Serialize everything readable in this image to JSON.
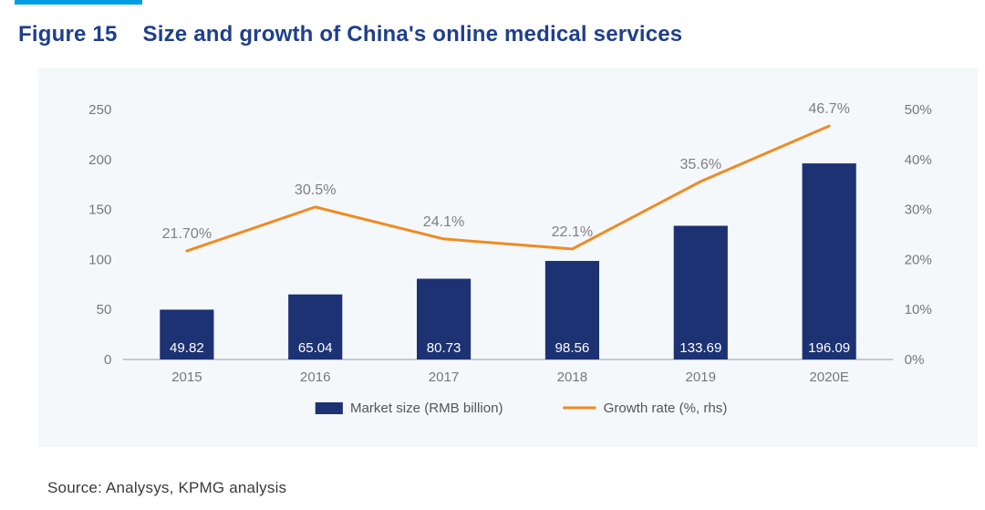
{
  "figure": {
    "number_label": "Figure 15",
    "title": "Size and growth of China's online medical services",
    "source_text": "Source: Analysys, KPMG analysis",
    "title_color": "#1f3f8a",
    "title_fontsize": 24,
    "accent_bar_color": "#009de0"
  },
  "chart": {
    "type": "bar+line",
    "panel_bg": "#f4f8fb",
    "categories": [
      "2015",
      "2016",
      "2017",
      "2018",
      "2019",
      "2020E"
    ],
    "bars": {
      "label": "Market size (RMB billion)",
      "values": [
        49.82,
        65.04,
        80.73,
        98.56,
        133.69,
        196.09
      ],
      "value_labels": [
        "49.82",
        "65.04",
        "80.73",
        "98.56",
        "133.69",
        "196.09"
      ],
      "color": "#1c3272",
      "bar_width_ratio": 0.42,
      "value_label_color": "#ffffff",
      "value_label_fontsize": 15
    },
    "line": {
      "label": "Growth rate (%, rhs)",
      "values_pct": [
        21.7,
        30.5,
        24.1,
        22.1,
        35.6,
        46.7
      ],
      "value_labels": [
        "21.70%",
        "30.5%",
        "24.1%",
        "22.1%",
        "35.6%",
        "46.7%"
      ],
      "color": "#ef8b22",
      "width": 3
    },
    "y_left": {
      "min": 0,
      "max": 250,
      "tick_step": 50,
      "ticks": [
        0,
        50,
        100,
        150,
        200,
        250
      ]
    },
    "y_right": {
      "min": 0,
      "max": 50,
      "tick_step": 10,
      "ticks": [
        "0%",
        "10%",
        "20%",
        "30%",
        "40%",
        "50%"
      ]
    },
    "axis_color": "#b7bbbe",
    "tick_label_color": "#777777",
    "tick_label_fontsize": 15,
    "category_fontsize": 15,
    "legend": {
      "bar_swatch_color": "#1c3272",
      "line_swatch_color": "#ef8b22",
      "fontsize": 15,
      "text_color": "#555555"
    }
  }
}
